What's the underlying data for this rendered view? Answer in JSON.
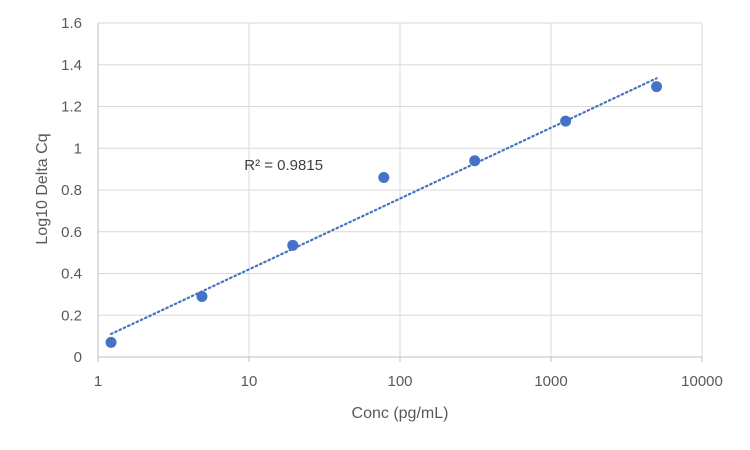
{
  "chart_data": {
    "type": "scatter",
    "title": "",
    "xlabel": "Conc (pg/mL)",
    "ylabel": "Log10 Delta Cq",
    "x_scale": "log",
    "xlim": [
      1,
      10000
    ],
    "ylim": [
      0,
      1.6
    ],
    "x_ticks": [
      "1",
      "10",
      "100",
      "1000",
      "10000"
    ],
    "y_ticks": [
      "0",
      "0.2",
      "0.4",
      "0.6",
      "0.8",
      "1",
      "1.2",
      "1.4",
      "1.6"
    ],
    "grid": true,
    "legend": "none",
    "series": [
      {
        "x": [
          1.22,
          4.88,
          19.5,
          78.1,
          312.5,
          1250,
          5000
        ],
        "y": [
          0.07,
          0.29,
          0.535,
          0.86,
          0.94,
          1.13,
          1.295
        ],
        "color": "#4472C4"
      }
    ],
    "trendline": {
      "type": "log-linear",
      "style": "dotted",
      "color": "#4472C4",
      "x_range": [
        1.22,
        5000
      ],
      "y_range": [
        0.11,
        1.335
      ]
    },
    "annotations": [
      {
        "text": "R² = 0.9815",
        "x": 9.3,
        "y": 0.92
      }
    ]
  }
}
